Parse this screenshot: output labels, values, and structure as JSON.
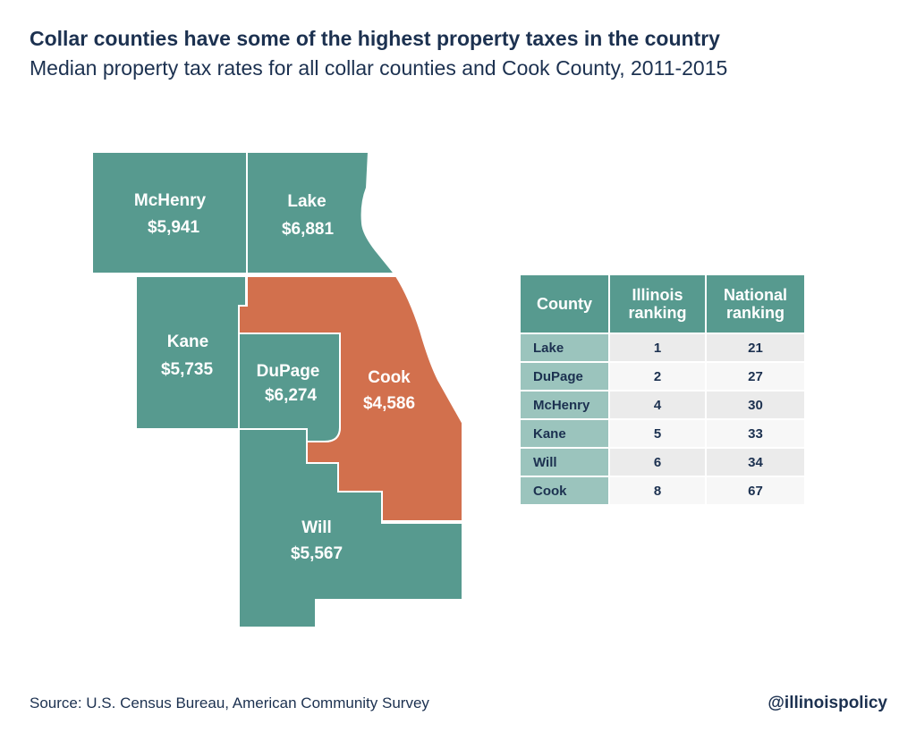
{
  "title": "Collar counties have some of the highest property taxes in the country",
  "subtitle": "Median property tax rates for all collar counties and Cook County, 2011-2015",
  "colors": {
    "collar": "#579a8f",
    "cook": "#d2704d",
    "text": "#1c3150",
    "table_county_col": "#9bc4bd"
  },
  "map": {
    "counties": [
      {
        "name": "McHenry",
        "value": "$5,941"
      },
      {
        "name": "Lake",
        "value": "$6,881"
      },
      {
        "name": "Kane",
        "value": "$5,735"
      },
      {
        "name": "DuPage",
        "value": "$6,274"
      },
      {
        "name": "Cook",
        "value": "$4,586"
      },
      {
        "name": "Will",
        "value": "$5,567"
      }
    ]
  },
  "table": {
    "headers": [
      "County",
      "Illinois",
      "ranking",
      "National",
      "ranking"
    ],
    "rows": [
      {
        "county": "Lake",
        "illinois": "1",
        "national": "21"
      },
      {
        "county": "DuPage",
        "illinois": "2",
        "national": "27"
      },
      {
        "county": "McHenry",
        "illinois": "4",
        "national": "30"
      },
      {
        "county": "Kane",
        "illinois": "5",
        "national": "33"
      },
      {
        "county": "Will",
        "illinois": "6",
        "national": "34"
      },
      {
        "county": "Cook",
        "illinois": "8",
        "national": "67"
      }
    ]
  },
  "source": "Source: U.S. Census Bureau, American Community Survey",
  "handle": "@illinoispolicy"
}
